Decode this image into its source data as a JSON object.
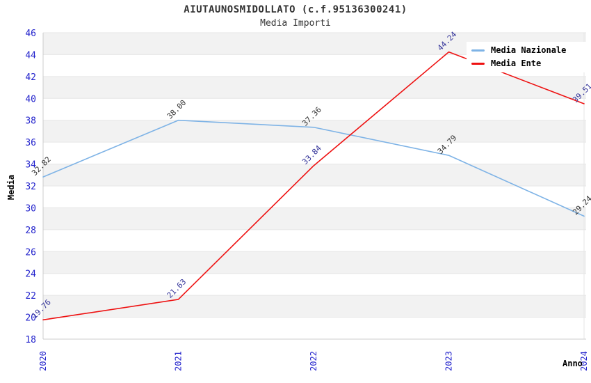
{
  "header": {
    "title": "AIUTAUNOSMIDOLLATO (c.f.95136300241)",
    "subtitle": "Media Importi"
  },
  "legend": {
    "items": [
      {
        "label": "Media Nazionale",
        "color": "#7EB3E6"
      },
      {
        "label": "Media Ente",
        "color": "#EE1111"
      }
    ]
  },
  "chart_data": {
    "type": "line",
    "title": "AIUTAUNOSMIDOLLATO (c.f.95136300241)",
    "subtitle": "Media Importi",
    "xlabel": "Anno",
    "ylabel": "Media",
    "x": [
      "2020",
      "2021",
      "2022",
      "2023",
      "2024"
    ],
    "series": [
      {
        "name": "Media Nazionale",
        "color": "#7EB3E6",
        "label_color": "#333333",
        "values": [
          32.82,
          38.0,
          37.36,
          34.79,
          29.24
        ]
      },
      {
        "name": "Media Ente",
        "color": "#EE1111",
        "label_color": "#333399",
        "values": [
          19.76,
          21.63,
          33.84,
          44.24,
          39.51
        ]
      }
    ],
    "ylim": [
      18,
      46
    ],
    "ytick_step": 2,
    "yticks": [
      18,
      20,
      22,
      24,
      26,
      28,
      30,
      32,
      34,
      36,
      38,
      40,
      42,
      44,
      46
    ],
    "grid": true,
    "legend_position": "top-right",
    "colors": {
      "tick_label": "#2222CC",
      "band": "#F2F2F2",
      "gridline": "#E6E6E6",
      "axis_line": "#CCCCCC"
    }
  }
}
